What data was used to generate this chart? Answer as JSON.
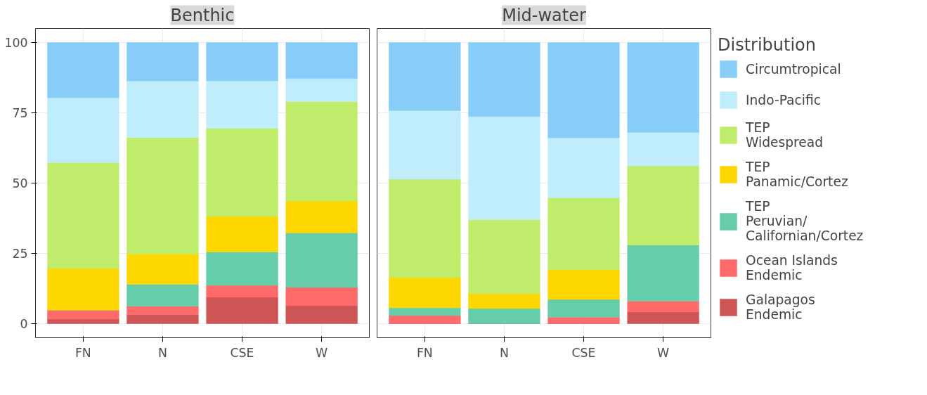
{
  "chart_data": [
    {
      "type": "bar",
      "title": "Benthic",
      "stacked": true,
      "categories": [
        "FN",
        "N",
        "CSE",
        "W"
      ],
      "ylim": [
        -5,
        105
      ],
      "yticks": [
        0,
        25,
        50,
        75,
        100
      ],
      "grid": true,
      "series": [
        {
          "color": "#cd5555",
          "values": [
            1.6,
            3.2,
            9.4,
            6.4
          ]
        },
        {
          "color": "#ff6a6a",
          "values": [
            3.2,
            3.0,
            4.2,
            6.5
          ]
        },
        {
          "color": "#66cdaa",
          "values": [
            0,
            7.8,
            11.9,
            19.4
          ]
        },
        {
          "color": "#ffd700",
          "values": [
            14.8,
            10.8,
            12.6,
            11.3
          ]
        },
        {
          "color": "#bfed6b",
          "values": [
            37.7,
            41.4,
            31.4,
            35.4
          ]
        },
        {
          "color": "#bfedfc",
          "values": [
            23.1,
            20.1,
            16.9,
            8.2
          ]
        },
        {
          "color": "#87cdf8",
          "values": [
            19.6,
            13.7,
            13.6,
            12.8
          ]
        }
      ]
    },
    {
      "type": "bar",
      "title": "Mid-water",
      "stacked": true,
      "categories": [
        "FN",
        "N",
        "CSE",
        "W"
      ],
      "ylim": [
        -5,
        105
      ],
      "yticks": [
        0,
        25,
        50,
        75,
        100
      ],
      "grid": true,
      "tick_labels": "x",
      "legend": "right",
      "legend_title": "Distribution",
      "series": [
        {
          "name": "Galapagos\nEndemic",
          "color": "#cd5555",
          "values": [
            0,
            0,
            0,
            4.1
          ]
        },
        {
          "name": "Ocean Islands\nEndemic",
          "color": "#ff6a6a",
          "values": [
            2.9,
            0,
            2.3,
            3.9
          ]
        },
        {
          "name": "TEP\nPeruvian/\nCalifornian/Cortez",
          "color": "#66cdaa",
          "values": [
            2.7,
            5.4,
            6.3,
            20.0
          ]
        },
        {
          "name": "TEP\nPanamic/Cortez",
          "color": "#ffd700",
          "values": [
            10.8,
            5.3,
            10.6,
            0
          ]
        },
        {
          "name": "TEP\nWidespread",
          "color": "#bfed6b",
          "values": [
            35.0,
            26.3,
            25.6,
            28.1
          ]
        },
        {
          "name": "Indo-Pacific",
          "color": "#bfedfc",
          "values": [
            24.4,
            36.7,
            21.3,
            11.9
          ]
        },
        {
          "name": "Circumtropical",
          "color": "#87cdf8",
          "values": [
            24.2,
            26.3,
            33.9,
            32.0
          ]
        }
      ]
    }
  ]
}
